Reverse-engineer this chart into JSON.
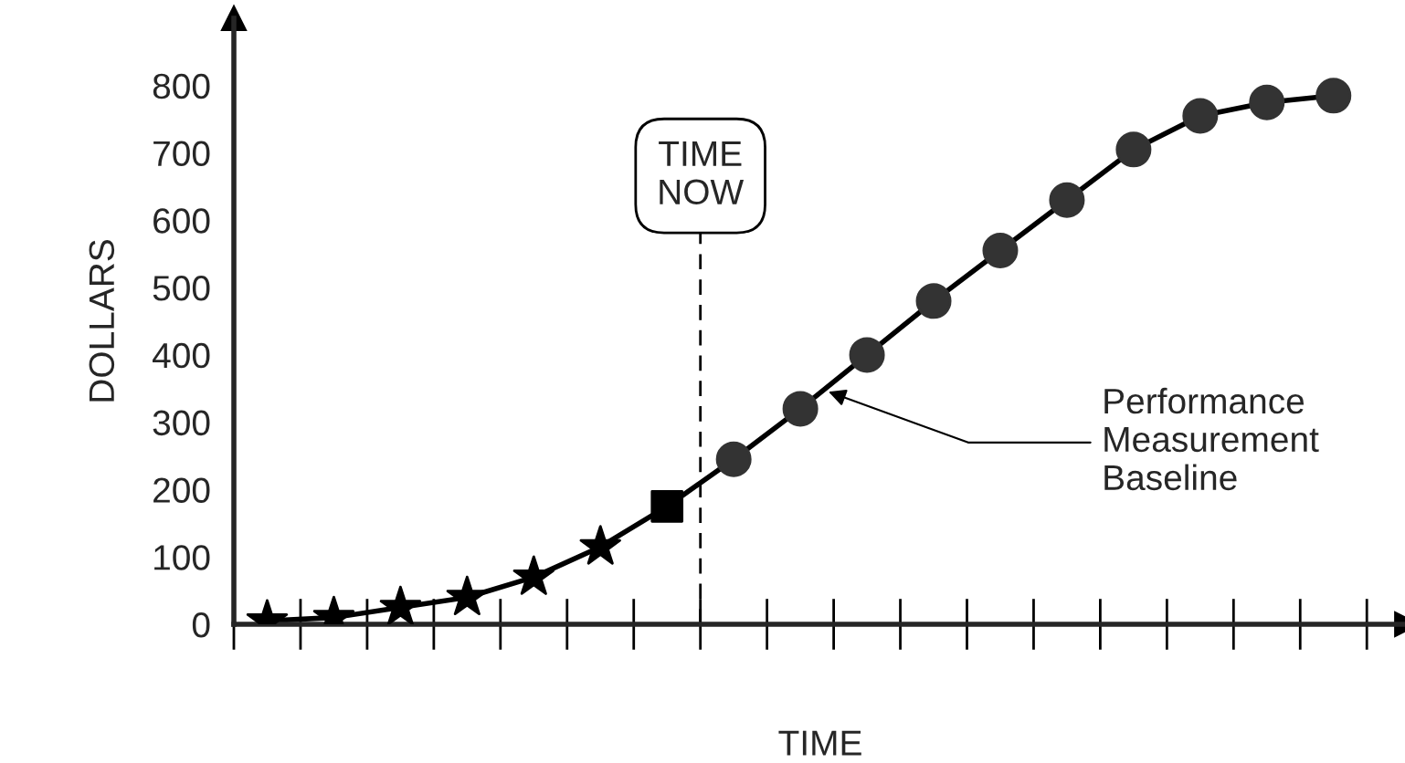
{
  "chart_data": {
    "type": "line",
    "xlabel": "TIME",
    "ylabel": "DOLLARS",
    "categories": [
      null,
      null,
      null,
      null,
      null,
      null,
      null,
      null,
      null,
      null,
      null,
      null,
      null,
      null,
      null,
      null,
      null
    ],
    "series": [
      {
        "marker": "none",
        "color": "#000000",
        "values": [
          5,
          10,
          25,
          40,
          70,
          115,
          175,
          245,
          320,
          400,
          480,
          555,
          630,
          705,
          755,
          775,
          785
        ]
      },
      {
        "type": "scatter",
        "marker": "star",
        "color": "#000000",
        "values": [
          5,
          10,
          25,
          40,
          70,
          115,
          null,
          null,
          null,
          null,
          null,
          null,
          null,
          null,
          null,
          null,
          null
        ]
      },
      {
        "type": "scatter",
        "marker": "square",
        "color": "#000000",
        "values": [
          null,
          null,
          null,
          null,
          null,
          null,
          175,
          null,
          null,
          null,
          null,
          null,
          null,
          null,
          null,
          null,
          null
        ]
      },
      {
        "type": "scatter",
        "marker": "circle",
        "color": "#333333",
        "values": [
          null,
          null,
          null,
          null,
          null,
          null,
          null,
          245,
          320,
          400,
          480,
          555,
          630,
          705,
          755,
          775,
          785
        ]
      }
    ],
    "ylim": [
      0,
      900
    ],
    "yticks": [
      0,
      100,
      200,
      300,
      400,
      500,
      600,
      700,
      800
    ],
    "tick_labels": "y",
    "grid": false,
    "annotations": [
      "TIME\nNOW",
      "Performance\nMeasurement\nBaseline"
    ]
  }
}
